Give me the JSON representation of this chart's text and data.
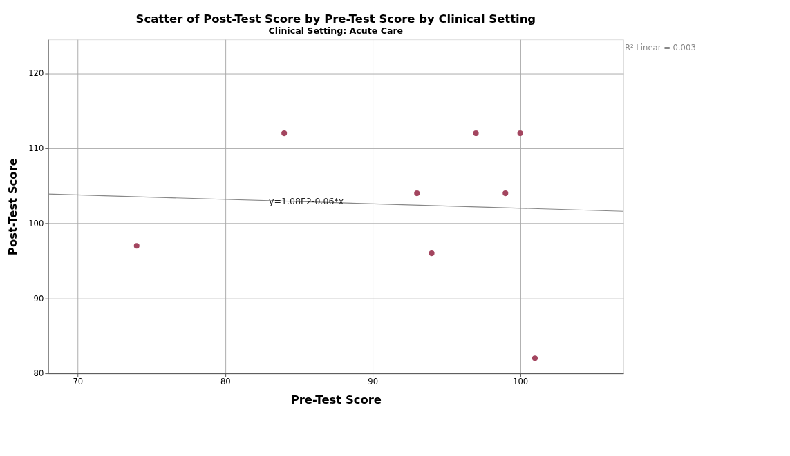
{
  "chart_data": {
    "type": "scatter",
    "title": "Scatter of Post-Test Score by Pre-Test Score by Clinical Setting",
    "subtitle": "Clinical Setting: Acute Care",
    "xlabel": "Pre-Test Score",
    "ylabel": "Post-Test Score",
    "series": [
      {
        "color": "#a3455f",
        "marker": "circle",
        "x": [
          74,
          84,
          93,
          94,
          97,
          99,
          100,
          101
        ],
        "values": [
          97,
          112,
          104,
          96,
          112,
          104,
          112,
          82
        ]
      },
      {
        "type": "line",
        "color": "#888888",
        "x": [
          68,
          107
        ],
        "values": [
          103.9,
          101.6
        ]
      }
    ],
    "xlim": [
      68,
      107
    ],
    "ylim": [
      80,
      124.5
    ],
    "xticks": [
      70,
      80,
      90,
      100
    ],
    "yticks": [
      80,
      90,
      100,
      110,
      120
    ],
    "grid": true,
    "annotations": [
      {
        "text": "y=1.08E2-0.06*x",
        "x": 85.5,
        "y": 102.9
      },
      "R² Linear = 0.003"
    ]
  }
}
